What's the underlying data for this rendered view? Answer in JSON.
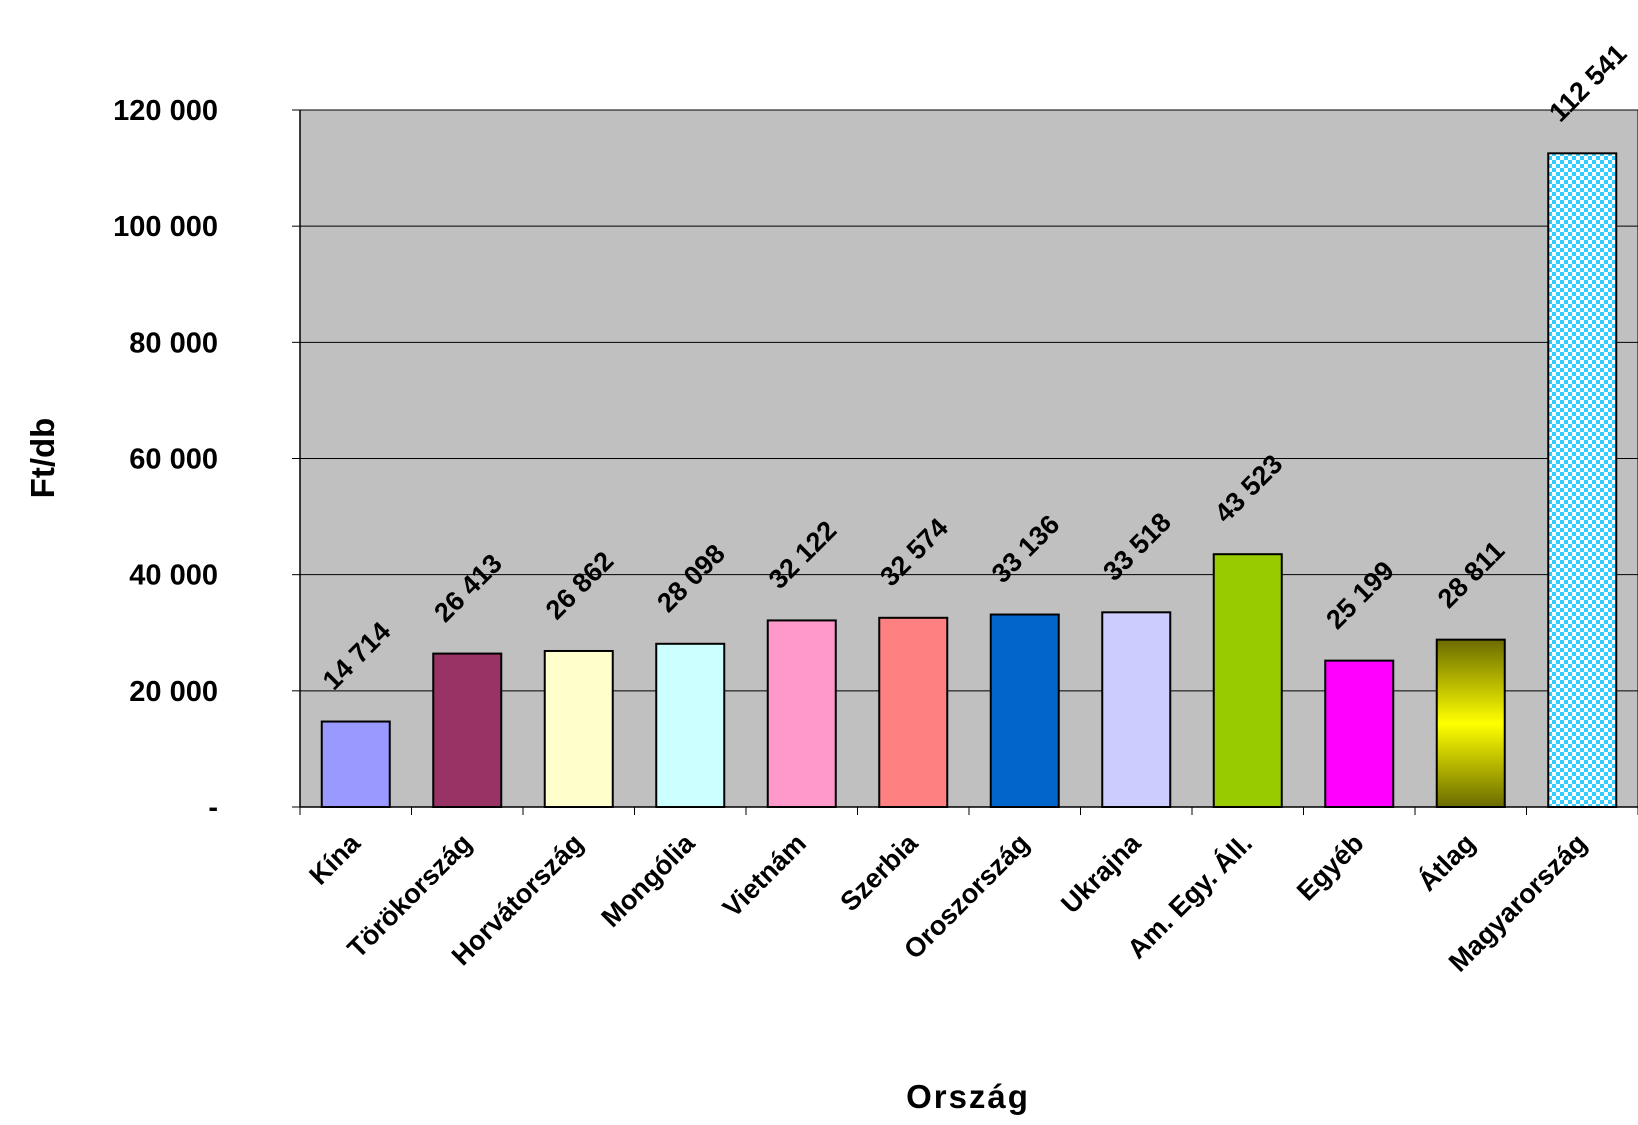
{
  "chart_data": {
    "type": "bar",
    "xlabel": "Ország",
    "ylabel": "Ft/db",
    "ylim": [
      0,
      120000
    ],
    "yticks": [
      0,
      20000,
      40000,
      60000,
      80000,
      100000,
      120000
    ],
    "ytick_labels": [
      "-",
      "20 000",
      "40 000",
      "60 000",
      "80 000",
      "100 000",
      "120 000"
    ],
    "grid": "horizontal",
    "plot_background": "#c0c0c0",
    "categories": [
      "Kína",
      "Törökország",
      "Horvátország",
      "Mongólia",
      "Vietnám",
      "Szerbia",
      "Oroszország",
      "Ukrajna",
      "Am. Egy. Áll.",
      "Egyéb",
      "Átlag",
      "Magyarország"
    ],
    "values": [
      14714,
      26413,
      26862,
      28098,
      32122,
      32574,
      33136,
      33518,
      43523,
      25199,
      28811,
      112541
    ],
    "value_labels": [
      "14 714",
      "26 413",
      "26 862",
      "28 098",
      "32 122",
      "32 574",
      "33 136",
      "33 518",
      "43 523",
      "25 199",
      "28 811",
      "112 541"
    ],
    "colors": [
      "#9999ff",
      "#993366",
      "#ffffcc",
      "#ccffff",
      "#ff99cc",
      "#ff8080",
      "#0066cc",
      "#ccccff",
      "#99cc00",
      "#ff00ff",
      "gradient-olive-yellow",
      "pattern-cyan-check"
    ]
  }
}
